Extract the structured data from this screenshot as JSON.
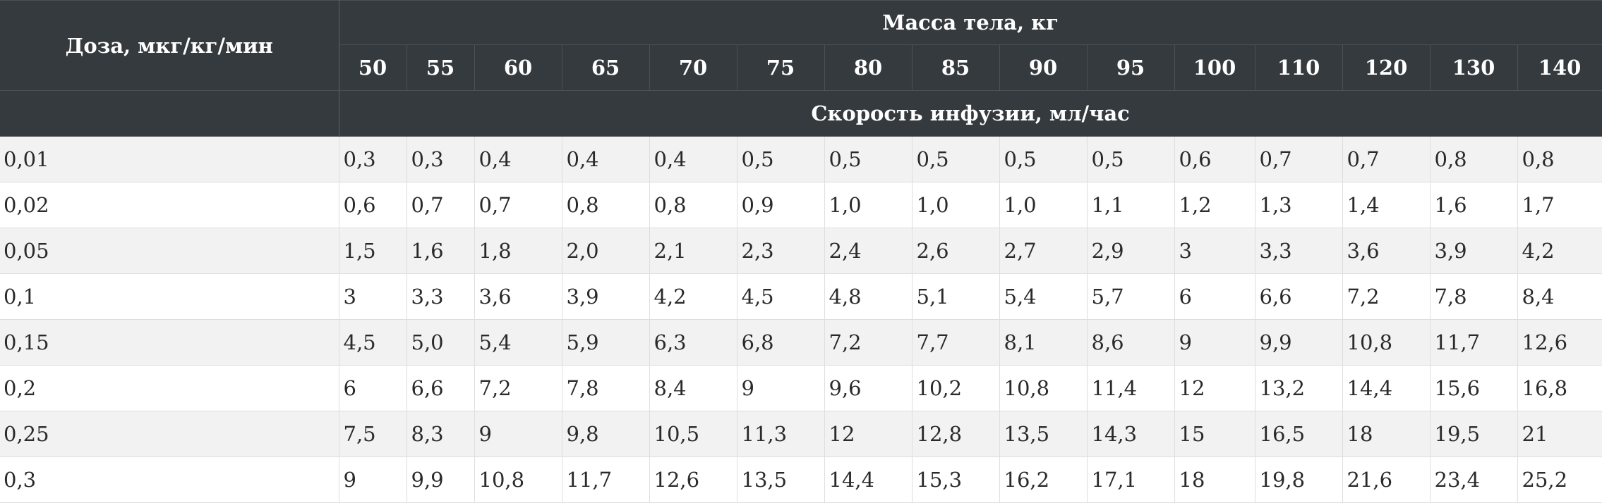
{
  "table": {
    "dose_header": "Доза, мкг/кг/мин",
    "mass_header": "Масса тела, кг",
    "rate_header": "Скорость инфузии, мл/час",
    "weights": [
      "50",
      "55",
      "60",
      "65",
      "70",
      "75",
      "80",
      "85",
      "90",
      "95",
      "100",
      "110",
      "120",
      "130",
      "140"
    ],
    "rows": [
      {
        "dose": "0,01",
        "values": [
          "0,3",
          "0,3",
          "0,4",
          "0,4",
          "0,4",
          "0,5",
          "0,5",
          "0,5",
          "0,5",
          "0,5",
          "0,6",
          "0,7",
          "0,7",
          "0,8",
          "0,8"
        ]
      },
      {
        "dose": "0,02",
        "values": [
          "0,6",
          "0,7",
          "0,7",
          "0,8",
          "0,8",
          "0,9",
          "1,0",
          "1,0",
          "1,0",
          "1,1",
          "1,2",
          "1,3",
          "1,4",
          "1,6",
          "1,7"
        ]
      },
      {
        "dose": "0,05",
        "values": [
          "1,5",
          "1,6",
          "1,8",
          "2,0",
          "2,1",
          "2,3",
          "2,4",
          "2,6",
          "2,7",
          "2,9",
          "3",
          "3,3",
          "3,6",
          "3,9",
          "4,2"
        ]
      },
      {
        "dose": "0,1",
        "values": [
          "3",
          "3,3",
          "3,6",
          "3,9",
          "4,2",
          "4,5",
          "4,8",
          "5,1",
          "5,4",
          "5,7",
          "6",
          "6,6",
          "7,2",
          "7,8",
          "8,4"
        ]
      },
      {
        "dose": "0,15",
        "values": [
          "4,5",
          "5,0",
          "5,4",
          "5,9",
          "6,3",
          "6,8",
          "7,2",
          "7,7",
          "8,1",
          "8,6",
          "9",
          "9,9",
          "10,8",
          "11,7",
          "12,6"
        ]
      },
      {
        "dose": "0,2",
        "values": [
          "6",
          "6,6",
          "7,2",
          "7,8",
          "8,4",
          "9",
          "9,6",
          "10,2",
          "10,8",
          "11,4",
          "12",
          "13,2",
          "14,4",
          "15,6",
          "16,8"
        ]
      },
      {
        "dose": "0,25",
        "values": [
          "7,5",
          "8,3",
          "9",
          "9,8",
          "10,5",
          "11,3",
          "12",
          "12,8",
          "13,5",
          "14,3",
          "15",
          "16,5",
          "18",
          "19,5",
          "21"
        ]
      },
      {
        "dose": "0,3",
        "values": [
          "9",
          "9,9",
          "10,8",
          "11,7",
          "12,6",
          "13,5",
          "14,4",
          "15,3",
          "16,2",
          "17,1",
          "18",
          "19,8",
          "21,6",
          "23,4",
          "25,2"
        ]
      }
    ]
  }
}
